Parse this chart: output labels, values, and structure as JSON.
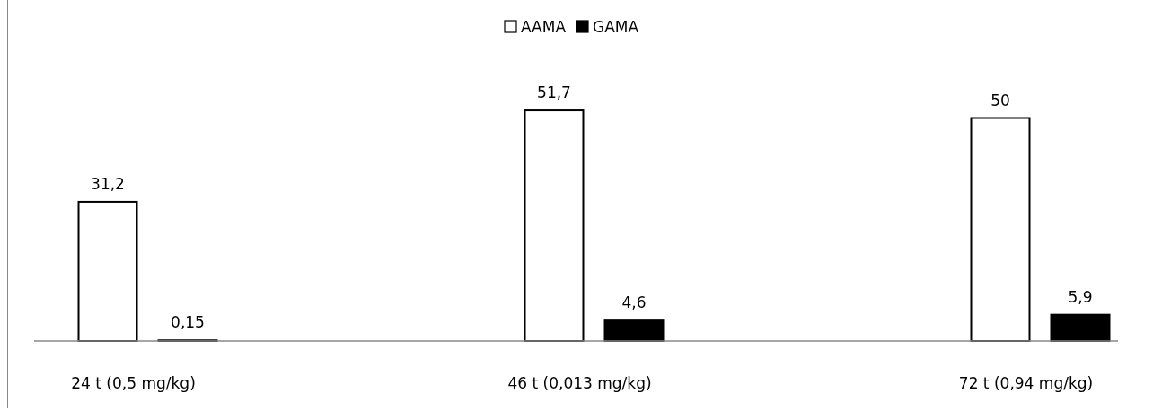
{
  "chart_data": {
    "type": "bar",
    "categories": [
      "24 t (0,5 mg/kg)",
      "46 t (0,013 mg/kg)",
      "72 t (0,94 mg/kg)"
    ],
    "series": [
      {
        "name": "AAMA",
        "color": "#ffffff",
        "values": [
          31.2,
          51.7,
          50
        ],
        "value_labels": [
          "31,2",
          "51,7",
          "50"
        ]
      },
      {
        "name": "GAMA",
        "color": "#000000",
        "values": [
          0.15,
          4.6,
          5.9
        ],
        "value_labels": [
          "0,15",
          "4,6",
          "5,9"
        ]
      }
    ],
    "legend": "top"
  }
}
